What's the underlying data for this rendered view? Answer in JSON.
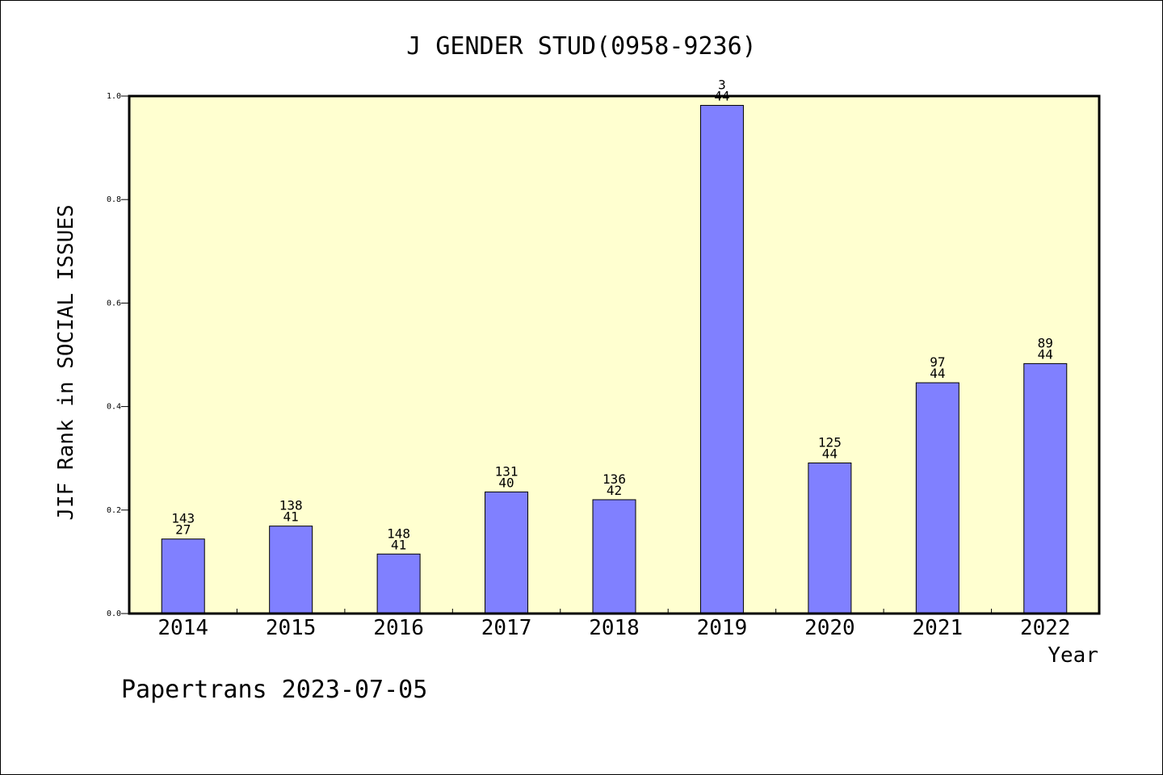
{
  "chart_data": {
    "type": "bar",
    "title": "J GENDER STUD(0958-9236)",
    "xlabel": "Year",
    "ylabel": "JIF Rank in SOCIAL ISSUES",
    "footer": "Papertrans 2023-07-05",
    "categories": [
      "2014",
      "2015",
      "2016",
      "2017",
      "2018",
      "2019",
      "2020",
      "2021",
      "2022"
    ],
    "values": [
      0.144,
      0.169,
      0.115,
      0.235,
      0.22,
      0.982,
      0.291,
      0.446,
      0.483
    ],
    "label_top": [
      "143",
      "138",
      "148",
      "131",
      "136",
      "3",
      "125",
      "97",
      "89"
    ],
    "label_bottom": [
      "27",
      "41",
      "41",
      "40",
      "42",
      "44",
      "44",
      "44",
      "44"
    ],
    "ylim": [
      0,
      1.0
    ],
    "yticks": [
      "0.0",
      "0.2",
      "0.4",
      "0.6",
      "0.8",
      "1.0"
    ],
    "grid": false,
    "colors": {
      "bar": "#8080ff",
      "plot_background": "#ffffd0",
      "axis": "#000000"
    }
  }
}
